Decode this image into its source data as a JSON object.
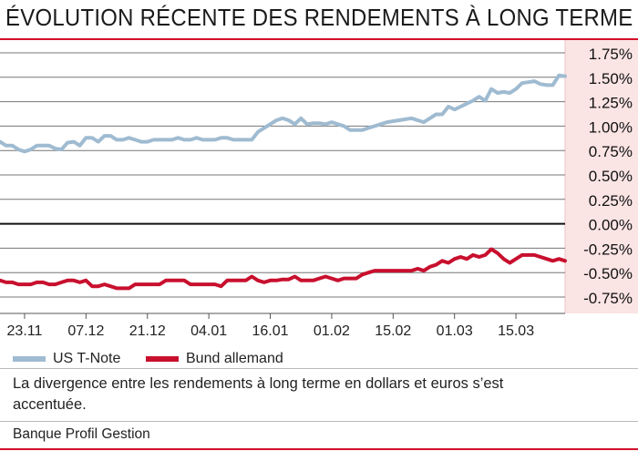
{
  "title": "ÉVOLUTION RÉCENTE DES RENDEMENTS À LONG TERME",
  "caption": "La divergence entre les rendements à long terme en dollars et euros s’est accentuée.",
  "source": "Banque Profil Gestion",
  "colors": {
    "brand_red": "#d3102a",
    "us_line": "#9fbbd1",
    "bund_line": "#c8102e",
    "axis_band": "#fbe4e4",
    "grid": "#777777"
  },
  "chart_data": {
    "type": "line",
    "title": "ÉVOLUTION RÉCENTE DES RENDEMENTS À LONG TERME",
    "xlabel": "",
    "ylabel": "",
    "ylim": [
      -0.75,
      1.75
    ],
    "yticks": [
      "1.75%",
      "1.50%",
      "1.25%",
      "1.00%",
      "0.75%",
      "0.50%",
      "0.25%",
      "0.00%",
      "-0.25%",
      "-0.50%",
      "-0.75%"
    ],
    "ytick_values": [
      1.75,
      1.5,
      1.25,
      1.0,
      0.75,
      0.5,
      0.25,
      0.0,
      -0.25,
      -0.5,
      -0.75
    ],
    "xticks": [
      "23.11",
      "07.12",
      "21.12",
      "04.01",
      "16.01",
      "01.02",
      "15.02",
      "01.03",
      "15.03"
    ],
    "grid": true,
    "legend_position": "bottom-left",
    "series": [
      {
        "name": "US T-Note",
        "color": "#9fbbd1",
        "values": [
          0.84,
          0.8,
          0.8,
          0.76,
          0.74,
          0.76,
          0.8,
          0.8,
          0.8,
          0.77,
          0.76,
          0.83,
          0.84,
          0.8,
          0.88,
          0.88,
          0.84,
          0.9,
          0.9,
          0.86,
          0.86,
          0.88,
          0.86,
          0.84,
          0.84,
          0.86,
          0.86,
          0.86,
          0.86,
          0.88,
          0.86,
          0.86,
          0.88,
          0.86,
          0.86,
          0.86,
          0.88,
          0.88,
          0.86,
          0.86,
          0.86,
          0.86,
          0.94,
          0.98,
          1.02,
          1.06,
          1.08,
          1.06,
          1.02,
          1.08,
          1.02,
          1.03,
          1.03,
          1.02,
          1.04,
          1.02,
          1.0,
          0.96,
          0.96,
          0.96,
          0.98,
          1.0,
          1.02,
          1.04,
          1.05,
          1.06,
          1.07,
          1.08,
          1.06,
          1.04,
          1.08,
          1.12,
          1.12,
          1.2,
          1.17,
          1.2,
          1.23,
          1.26,
          1.3,
          1.26,
          1.38,
          1.34,
          1.35,
          1.34,
          1.38,
          1.44,
          1.45,
          1.46,
          1.43,
          1.42,
          1.42,
          1.52,
          1.51
        ]
      },
      {
        "name": "Bund allemand",
        "color": "#c8102e",
        "values": [
          -0.58,
          -0.6,
          -0.6,
          -0.62,
          -0.62,
          -0.62,
          -0.6,
          -0.6,
          -0.62,
          -0.62,
          -0.6,
          -0.58,
          -0.58,
          -0.6,
          -0.58,
          -0.64,
          -0.64,
          -0.62,
          -0.64,
          -0.66,
          -0.66,
          -0.66,
          -0.62,
          -0.62,
          -0.62,
          -0.62,
          -0.62,
          -0.58,
          -0.58,
          -0.58,
          -0.58,
          -0.62,
          -0.62,
          -0.62,
          -0.62,
          -0.62,
          -0.64,
          -0.58,
          -0.58,
          -0.58,
          -0.58,
          -0.54,
          -0.58,
          -0.6,
          -0.58,
          -0.58,
          -0.57,
          -0.57,
          -0.54,
          -0.58,
          -0.58,
          -0.58,
          -0.56,
          -0.54,
          -0.56,
          -0.58,
          -0.56,
          -0.56,
          -0.56,
          -0.52,
          -0.5,
          -0.48,
          -0.48,
          -0.48,
          -0.48,
          -0.48,
          -0.48,
          -0.48,
          -0.46,
          -0.48,
          -0.44,
          -0.42,
          -0.38,
          -0.4,
          -0.36,
          -0.34,
          -0.36,
          -0.32,
          -0.34,
          -0.32,
          -0.26,
          -0.3,
          -0.36,
          -0.4,
          -0.36,
          -0.32,
          -0.32,
          -0.32,
          -0.34,
          -0.36,
          -0.38,
          -0.36,
          -0.38
        ]
      }
    ]
  }
}
